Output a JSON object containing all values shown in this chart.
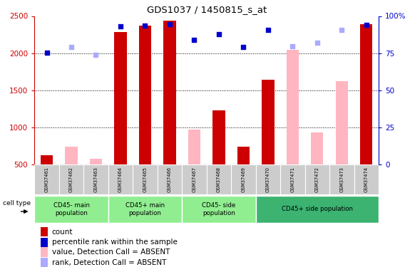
{
  "title": "GDS1037 / 1450815_s_at",
  "samples": [
    "GSM37461",
    "GSM37462",
    "GSM37463",
    "GSM37464",
    "GSM37465",
    "GSM37466",
    "GSM37467",
    "GSM37468",
    "GSM37469",
    "GSM37470",
    "GSM37471",
    "GSM37472",
    "GSM37473",
    "GSM37474"
  ],
  "count_present": [
    620,
    null,
    null,
    2280,
    2370,
    2440,
    null,
    1230,
    740,
    1640,
    null,
    null,
    null,
    2390
  ],
  "count_absent": [
    null,
    740,
    580,
    null,
    null,
    null,
    970,
    null,
    null,
    null,
    2040,
    930,
    1620,
    null
  ],
  "rank_present": [
    2010,
    null,
    null,
    2360,
    2370,
    2390,
    2175,
    2260,
    2080,
    2310,
    null,
    null,
    null,
    2380
  ],
  "rank_absent": [
    null,
    2085,
    1975,
    null,
    null,
    null,
    null,
    null,
    null,
    null,
    2095,
    2140,
    2310,
    null
  ],
  "ylim_left": [
    500,
    2500
  ],
  "ylim_right": [
    0,
    100
  ],
  "yticks_left": [
    500,
    1000,
    1500,
    2000,
    2500
  ],
  "yticks_right": [
    0,
    25,
    50,
    75,
    100
  ],
  "ct_colors": [
    "#90ee90",
    "#90ee90",
    "#90ee90",
    "#3cb371"
  ],
  "ct_labels": [
    "CD45- main\npopulation",
    "CD45+ main\npopulation",
    "CD45- side\npopulation",
    "CD45+ side population"
  ],
  "ct_starts": [
    0,
    3,
    6,
    9
  ],
  "ct_ends": [
    3,
    6,
    9,
    14
  ],
  "bar_color_present": "#cc0000",
  "bar_color_absent": "#ffb6c1",
  "dot_color_present": "#0000cc",
  "dot_color_absent": "#aaaaff",
  "tick_bg_color": "#cccccc",
  "right_axis_color": "#0000cc",
  "left_axis_color": "#cc0000",
  "legend_labels": [
    "count",
    "percentile rank within the sample",
    "value, Detection Call = ABSENT",
    "rank, Detection Call = ABSENT"
  ],
  "legend_colors": [
    "#cc0000",
    "#0000cc",
    "#ffb6c1",
    "#aaaaff"
  ]
}
